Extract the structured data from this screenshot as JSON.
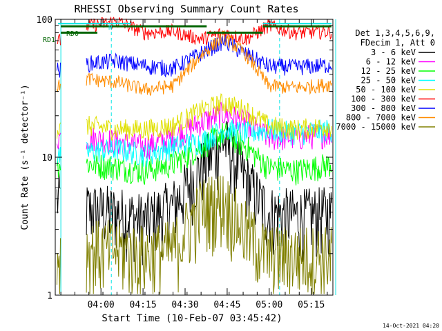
{
  "chart_data": {
    "type": "line",
    "title": "RHESSI Observing Summary Count Rates",
    "xlabel": "Start Time (10-Feb-07 03:45:42)",
    "ylabel": "Count Rate (s⁻¹ detector⁻¹)",
    "yscale": "log",
    "ylim": [
      1,
      100
    ],
    "xlim_minutes": [
      -2,
      97
    ],
    "x_ticks": [
      "04:00",
      "04:15",
      "04:30",
      "04:45",
      "05:00",
      "05:15"
    ],
    "x_tick_minutes": [
      14.3,
      29.3,
      44.3,
      59.3,
      74.3,
      89.3
    ],
    "y_tick_labels": [
      "1",
      "10",
      "100"
    ],
    "legend_header": [
      "Det 1,3,4,5,6,9,",
      "FDecim 1, Att 0"
    ],
    "legend_position": "right",
    "markers": [
      "RD0",
      "RD1",
      "N"
    ],
    "date_stamp": "14-Oct-2021 04:20",
    "intervals": {
      "night_start": 0,
      "night_end": 9,
      "day_end": 52,
      "night2_end": 72,
      "vline_solid": [
        0,
        98
      ],
      "vline_dashed": [
        18,
        78
      ]
    },
    "series": [
      {
        "name": "3 - 6 keV",
        "color": "#000000",
        "values": [
          [
            0,
            5.0
          ],
          [
            10,
            4.2
          ],
          [
            20,
            4.0
          ],
          [
            30,
            3.5
          ],
          [
            40,
            4.5
          ],
          [
            50,
            8.5
          ],
          [
            58,
            13.5
          ],
          [
            66,
            7.0
          ],
          [
            74,
            4.0
          ],
          [
            84,
            3.8
          ],
          [
            97,
            4.0
          ]
        ]
      },
      {
        "name": "6 - 12 keV",
        "color": "#ff00ff",
        "values": [
          [
            0,
            14
          ],
          [
            10,
            14
          ],
          [
            20,
            13
          ],
          [
            30,
            12
          ],
          [
            40,
            14
          ],
          [
            50,
            18
          ],
          [
            58,
            21
          ],
          [
            66,
            18
          ],
          [
            74,
            14
          ],
          [
            84,
            14
          ],
          [
            97,
            15
          ]
        ]
      },
      {
        "name": "12 - 25 keV",
        "color": "#00ff00",
        "values": [
          [
            0,
            9
          ],
          [
            10,
            9
          ],
          [
            20,
            8.5
          ],
          [
            30,
            8
          ],
          [
            40,
            9
          ],
          [
            50,
            12
          ],
          [
            58,
            15
          ],
          [
            66,
            12
          ],
          [
            74,
            8.5
          ],
          [
            84,
            8
          ],
          [
            97,
            9
          ]
        ]
      },
      {
        "name": "25 - 50 keV",
        "color": "#00ffff",
        "values": [
          [
            0,
            10
          ],
          [
            10,
            11
          ],
          [
            20,
            11.5
          ],
          [
            30,
            10.5
          ],
          [
            40,
            12
          ],
          [
            50,
            13
          ],
          [
            58,
            16
          ],
          [
            66,
            15
          ],
          [
            74,
            16
          ],
          [
            84,
            15
          ],
          [
            97,
            16
          ]
        ]
      },
      {
        "name": "50 - 100 keV",
        "color": "#e0e000",
        "values": [
          [
            0,
            16
          ],
          [
            10,
            17
          ],
          [
            20,
            16
          ],
          [
            30,
            16
          ],
          [
            40,
            17
          ],
          [
            50,
            22
          ],
          [
            58,
            25
          ],
          [
            66,
            22
          ],
          [
            74,
            17
          ],
          [
            84,
            16
          ],
          [
            97,
            17
          ]
        ]
      },
      {
        "name": "100 - 300 keV",
        "color": "#ff0000",
        "values": [
          [
            0,
            70
          ],
          [
            10,
            90
          ],
          [
            20,
            97
          ],
          [
            30,
            80
          ],
          [
            40,
            82
          ],
          [
            50,
            72
          ],
          [
            58,
            80
          ],
          [
            66,
            72
          ],
          [
            74,
            90
          ],
          [
            84,
            80
          ],
          [
            97,
            82
          ]
        ]
      },
      {
        "name": "300 - 800 keV",
        "color": "#0000ff",
        "values": [
          [
            0,
            43
          ],
          [
            10,
            48
          ],
          [
            20,
            50
          ],
          [
            30,
            46
          ],
          [
            40,
            44
          ],
          [
            50,
            57
          ],
          [
            58,
            70
          ],
          [
            66,
            56
          ],
          [
            74,
            46
          ],
          [
            84,
            45
          ],
          [
            97,
            47
          ]
        ]
      },
      {
        "name": "800 - 7000 keV",
        "color": "#ff8c00",
        "values": [
          [
            0,
            33
          ],
          [
            10,
            37
          ],
          [
            20,
            35
          ],
          [
            30,
            31
          ],
          [
            40,
            33
          ],
          [
            50,
            55
          ],
          [
            58,
            75
          ],
          [
            66,
            56
          ],
          [
            74,
            33
          ],
          [
            84,
            32
          ],
          [
            97,
            34
          ]
        ]
      },
      {
        "name": "7000 - 15000 keV",
        "color": "#808000",
        "values": [
          [
            0,
            2.0
          ],
          [
            10,
            2.2
          ],
          [
            20,
            2.2
          ],
          [
            30,
            2.0
          ],
          [
            40,
            2.2
          ],
          [
            50,
            4.5
          ],
          [
            58,
            5.0
          ],
          [
            66,
            3.0
          ],
          [
            74,
            2.0
          ],
          [
            84,
            2.0
          ],
          [
            97,
            2.0
          ]
        ]
      }
    ]
  }
}
